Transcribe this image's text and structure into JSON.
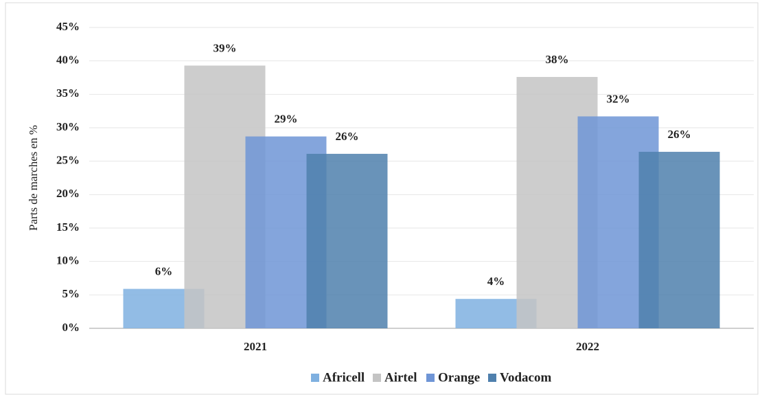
{
  "chart_data": {
    "type": "bar",
    "y_label": "Parts de marches en %",
    "categories": [
      "2021",
      "2022"
    ],
    "series": [
      {
        "name": "Africell",
        "color": "#7fb0e0",
        "values": [
          5.9,
          4.4
        ],
        "value_labels": [
          "6%",
          "4%"
        ]
      },
      {
        "name": "Airtel",
        "color": "#c4c4c4",
        "values": [
          39.3,
          37.6
        ],
        "value_labels": [
          "39%",
          "38%"
        ]
      },
      {
        "name": "Orange",
        "color": "#6f95d6",
        "values": [
          28.7,
          31.7
        ],
        "value_labels": [
          "29%",
          "32%"
        ]
      },
      {
        "name": "Vodacom",
        "color": "#4f80ad",
        "values": [
          26.1,
          26.4
        ],
        "value_labels": [
          "26%",
          "26%"
        ]
      }
    ],
    "ylim": [
      0,
      45
    ],
    "yticks": [
      {
        "value": 0,
        "label": "0%"
      },
      {
        "value": 5,
        "label": "5%"
      },
      {
        "value": 10,
        "label": "10%"
      },
      {
        "value": 15,
        "label": "15%"
      },
      {
        "value": 20,
        "label": "20%"
      },
      {
        "value": 25,
        "label": "25%"
      },
      {
        "value": 30,
        "label": "30%"
      },
      {
        "value": 35,
        "label": "35%"
      },
      {
        "value": 40,
        "label": "40%"
      },
      {
        "value": 45,
        "label": "45%"
      }
    ],
    "grid": true,
    "legend": "bottom"
  }
}
